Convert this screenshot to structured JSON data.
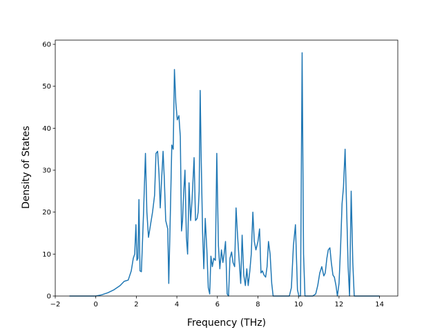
{
  "chart_data": {
    "type": "line",
    "title": "",
    "xlabel": "Frequency (THz)",
    "ylabel": "Density of States",
    "xlim": [
      -2.0,
      14.9
    ],
    "ylim": [
      0,
      61
    ],
    "xticks": [
      -2,
      0,
      2,
      4,
      6,
      8,
      10,
      12,
      14
    ],
    "yticks": [
      0,
      10,
      20,
      30,
      40,
      50,
      60
    ],
    "grid": false,
    "legend": "none",
    "series": [
      {
        "color": "#1f77b4",
        "x": [
          -1.3,
          -0.5,
          0.0,
          0.3,
          0.6,
          0.9,
          1.2,
          1.4,
          1.6,
          1.75,
          1.85,
          1.92,
          1.98,
          2.03,
          2.08,
          2.13,
          2.18,
          2.25,
          2.35,
          2.45,
          2.52,
          2.6,
          2.7,
          2.8,
          2.9,
          2.97,
          3.05,
          3.12,
          3.18,
          3.25,
          3.32,
          3.38,
          3.45,
          3.55,
          3.6,
          3.68,
          3.75,
          3.82,
          3.88,
          3.95,
          4.02,
          4.1,
          4.17,
          4.23,
          4.28,
          4.33,
          4.4,
          4.47,
          4.53,
          4.6,
          4.68,
          4.75,
          4.85,
          4.92,
          5.0,
          5.05,
          5.1,
          5.15,
          5.2,
          5.27,
          5.33,
          5.4,
          5.48,
          5.55,
          5.62,
          5.68,
          5.75,
          5.82,
          5.9,
          5.97,
          6.05,
          6.12,
          6.2,
          6.27,
          6.33,
          6.4,
          6.48,
          6.55,
          6.62,
          6.7,
          6.77,
          6.85,
          6.92,
          7.0,
          7.08,
          7.15,
          7.22,
          7.3,
          7.38,
          7.45,
          7.52,
          7.6,
          7.67,
          7.75,
          7.82,
          7.9,
          8.0,
          8.08,
          8.15,
          8.22,
          8.3,
          8.38,
          8.45,
          8.52,
          8.6,
          8.68,
          8.75,
          8.82,
          8.9,
          8.97,
          9.05,
          9.12,
          9.2,
          9.3,
          9.45,
          9.55,
          9.65,
          9.75,
          9.85,
          9.95,
          10.02,
          10.1,
          10.18,
          10.25,
          10.32,
          10.38,
          10.45,
          10.55,
          10.7,
          10.85,
          10.95,
          11.05,
          11.15,
          11.25,
          11.32,
          11.4,
          11.47,
          11.55,
          11.62,
          11.7,
          11.77,
          11.85,
          11.92,
          12.0,
          12.08,
          12.15,
          12.22,
          12.3,
          12.38,
          12.45,
          12.52,
          12.6,
          12.68,
          12.75,
          12.82,
          12.9,
          13.0,
          13.2,
          13.5,
          14.0
        ],
        "y": [
          0,
          0,
          0,
          0.3,
          0.8,
          1.5,
          2.5,
          3.5,
          3.8,
          6.0,
          9.0,
          10.0,
          17.0,
          8.5,
          9.0,
          23.0,
          6.0,
          5.8,
          19.0,
          34.0,
          20.0,
          14.0,
          17.0,
          20.0,
          24.0,
          34.0,
          34.5,
          29.0,
          21.0,
          28.0,
          34.5,
          28.0,
          18.0,
          16.0,
          3.0,
          20.0,
          36.0,
          35.0,
          54.0,
          46.0,
          42.0,
          43.0,
          38.0,
          15.5,
          18.0,
          24.0,
          30.0,
          14.0,
          10.0,
          27.0,
          18.0,
          23.0,
          33.0,
          18.0,
          18.5,
          20.0,
          25.0,
          49.0,
          33.0,
          15.0,
          6.5,
          18.5,
          11.0,
          2.0,
          0.5,
          9.5,
          7.0,
          9.0,
          8.5,
          34.0,
          12.0,
          6.5,
          11.0,
          8.0,
          10.0,
          13.0,
          0.5,
          0.0,
          9.0,
          10.5,
          8.0,
          7.0,
          21.0,
          14.0,
          8.0,
          3.0,
          14.5,
          5.0,
          2.5,
          6.5,
          2.5,
          6.0,
          10.0,
          20.0,
          13.0,
          11.0,
          13.0,
          16.0,
          5.5,
          6.0,
          5.0,
          4.5,
          7.0,
          13.0,
          10.0,
          3.0,
          0.0,
          0.0,
          0.0,
          0.0,
          0.0,
          0.0,
          0.0,
          0.0,
          0.0,
          0.0,
          2.0,
          12.0,
          17.0,
          1.5,
          0.0,
          0.0,
          58.0,
          10.0,
          0.0,
          0.0,
          0.0,
          0.0,
          0.0,
          0.5,
          2.5,
          5.5,
          7.0,
          4.8,
          5.5,
          9.0,
          11.0,
          11.5,
          8.0,
          5.0,
          4.5,
          2.5,
          0.0,
          3.0,
          12.0,
          22.0,
          26.0,
          35.0,
          20.0,
          7.0,
          0.0,
          25.0,
          8.0,
          0.0,
          0.0,
          0.0,
          0.0,
          0.0,
          0.0,
          0.0
        ]
      }
    ]
  }
}
